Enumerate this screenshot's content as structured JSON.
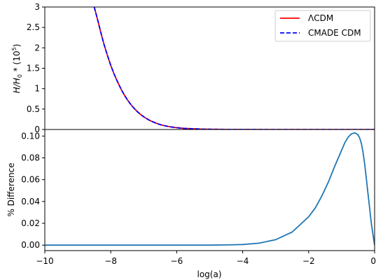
{
  "chart_data": [
    {
      "type": "line",
      "ylabel_parts": [
        "H",
        "/",
        "H",
        "0",
        " * (10",
        "5",
        ")"
      ],
      "xlim": [
        -10,
        0
      ],
      "ylim": [
        0,
        3
      ],
      "yticks": [
        0,
        0.5,
        1,
        1.5,
        2,
        2.5,
        3
      ],
      "ytick_labels": [
        "0",
        "0.5",
        "1",
        "1.5",
        "2",
        "2.5",
        "3"
      ],
      "grid": false,
      "legend_placement": "upper-right",
      "series": [
        {
          "name": "ΛCDM",
          "color": "#ff0000",
          "style": "solid",
          "x": [
            -8.5,
            -8.4,
            -8.3,
            -8.2,
            -8.1,
            -8.0,
            -7.9,
            -7.8,
            -7.7,
            -7.6,
            -7.5,
            -7.4,
            -7.3,
            -7.2,
            -7.1,
            -7.0,
            -6.9,
            -6.8,
            -6.7,
            -6.6,
            -6.5,
            -6.4,
            -6.3,
            -6.2,
            -6.1,
            -6.0,
            -5.8,
            -5.6,
            -5.4,
            -5.2,
            -5.0,
            -4.5,
            -4.0,
            -3.0,
            -2.0,
            -1.0,
            0.0
          ],
          "y": [
            3.0,
            2.69,
            2.37,
            2.07,
            1.81,
            1.57,
            1.36,
            1.18,
            1.01,
            0.86,
            0.73,
            0.62,
            0.525,
            0.44,
            0.37,
            0.31,
            0.26,
            0.215,
            0.18,
            0.148,
            0.12,
            0.1,
            0.082,
            0.067,
            0.055,
            0.045,
            0.03,
            0.02,
            0.013,
            0.008,
            0.005,
            0.002,
            0.001,
            0.0,
            0.0,
            0.0,
            0.0
          ]
        },
        {
          "name": "CMADE CDM",
          "color": "#0000ff",
          "style": "dashed",
          "x": [
            -8.5,
            -8.4,
            -8.3,
            -8.2,
            -8.1,
            -8.0,
            -7.9,
            -7.8,
            -7.7,
            -7.6,
            -7.5,
            -7.4,
            -7.3,
            -7.2,
            -7.1,
            -7.0,
            -6.9,
            -6.8,
            -6.7,
            -6.6,
            -6.5,
            -6.4,
            -6.3,
            -6.2,
            -6.1,
            -6.0,
            -5.8,
            -5.6,
            -5.4,
            -5.2,
            -5.0,
            -4.5,
            -4.0,
            -3.0,
            -2.0,
            -1.0,
            0.0
          ],
          "y": [
            3.0,
            2.69,
            2.37,
            2.07,
            1.81,
            1.57,
            1.36,
            1.18,
            1.01,
            0.86,
            0.73,
            0.62,
            0.525,
            0.44,
            0.37,
            0.31,
            0.26,
            0.215,
            0.18,
            0.148,
            0.12,
            0.1,
            0.082,
            0.067,
            0.055,
            0.045,
            0.03,
            0.02,
            0.013,
            0.008,
            0.005,
            0.002,
            0.001,
            0.0,
            0.0,
            0.0,
            0.0
          ]
        }
      ]
    },
    {
      "type": "line",
      "xlabel": "log(a)",
      "ylabel": "% Difference",
      "xlim": [
        -10,
        0
      ],
      "ylim": [
        -0.005,
        0.106
      ],
      "xticks": [
        -10,
        -8,
        -6,
        -4,
        -2,
        0
      ],
      "xtick_labels": [
        "−10",
        "−8",
        "−6",
        "−4",
        "−2",
        "0"
      ],
      "yticks": [
        0,
        0.02,
        0.04,
        0.06,
        0.08,
        0.1
      ],
      "ytick_labels": [
        "0.00",
        "0.02",
        "0.04",
        "0.06",
        "0.08",
        "0.10"
      ],
      "grid": false,
      "series": [
        {
          "color": "#1f77b4",
          "style": "solid",
          "x": [
            -10.0,
            -8.0,
            -6.0,
            -5.0,
            -4.5,
            -4.0,
            -3.5,
            -3.0,
            -2.5,
            -2.0,
            -1.8,
            -1.6,
            -1.4,
            -1.2,
            -1.0,
            -0.9,
            -0.8,
            -0.7,
            -0.6,
            -0.5,
            -0.45,
            -0.4,
            -0.35,
            -0.3,
            -0.25,
            -0.2,
            -0.15,
            -0.1,
            -0.05,
            0.0
          ],
          "y": [
            0.0,
            0.0,
            0.0,
            0.0,
            0.0002,
            0.0006,
            0.0018,
            0.005,
            0.012,
            0.026,
            0.034,
            0.045,
            0.058,
            0.073,
            0.087,
            0.094,
            0.099,
            0.102,
            0.103,
            0.101,
            0.098,
            0.093,
            0.085,
            0.074,
            0.061,
            0.047,
            0.034,
            0.02,
            0.01,
            0.0
          ]
        }
      ]
    }
  ]
}
